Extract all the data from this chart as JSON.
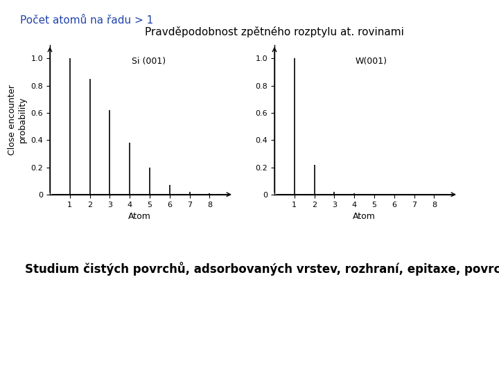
{
  "title_topleft": "Počet atomů na řadu > 1",
  "title_topright": "Pravděpodobnost zpětného rozptylu at. rovinami",
  "bottom_text": "Studium čistých povrchů, adsorbovaných vrstev, rozhraní, epitaxe, povrchového tání",
  "title_topleft_color": "#2244aa",
  "title_topright_color": "#000000",
  "bottom_text_color": "#000000",
  "chart1_label": "Si (001)",
  "chart1_xlabel": "Atom",
  "chart1_ylabel": "Close encounter\nprobability",
  "chart1_atoms": [
    1,
    2,
    3,
    4,
    5,
    6,
    7,
    8
  ],
  "chart1_values": [
    1.0,
    0.85,
    0.62,
    0.38,
    0.2,
    0.07,
    0.02,
    0.01
  ],
  "chart2_label": "W(001)",
  "chart2_xlabel": "Atom",
  "chart2_ylabel": "",
  "chart2_atoms": [
    1,
    2,
    3,
    4,
    5,
    6,
    7,
    8
  ],
  "chart2_values": [
    1.0,
    0.22,
    0.02,
    0.01,
    0.005,
    0.003,
    0.002,
    0.001
  ],
  "ylim": [
    0,
    1.1
  ],
  "yticks": [
    0,
    0.2,
    0.4,
    0.6,
    0.8,
    1.0
  ],
  "bg_color": "#ffffff",
  "line_color": "#000000",
  "font_size_title": 11,
  "font_size_label": 9,
  "font_size_tick": 8,
  "font_size_bottom": 12
}
